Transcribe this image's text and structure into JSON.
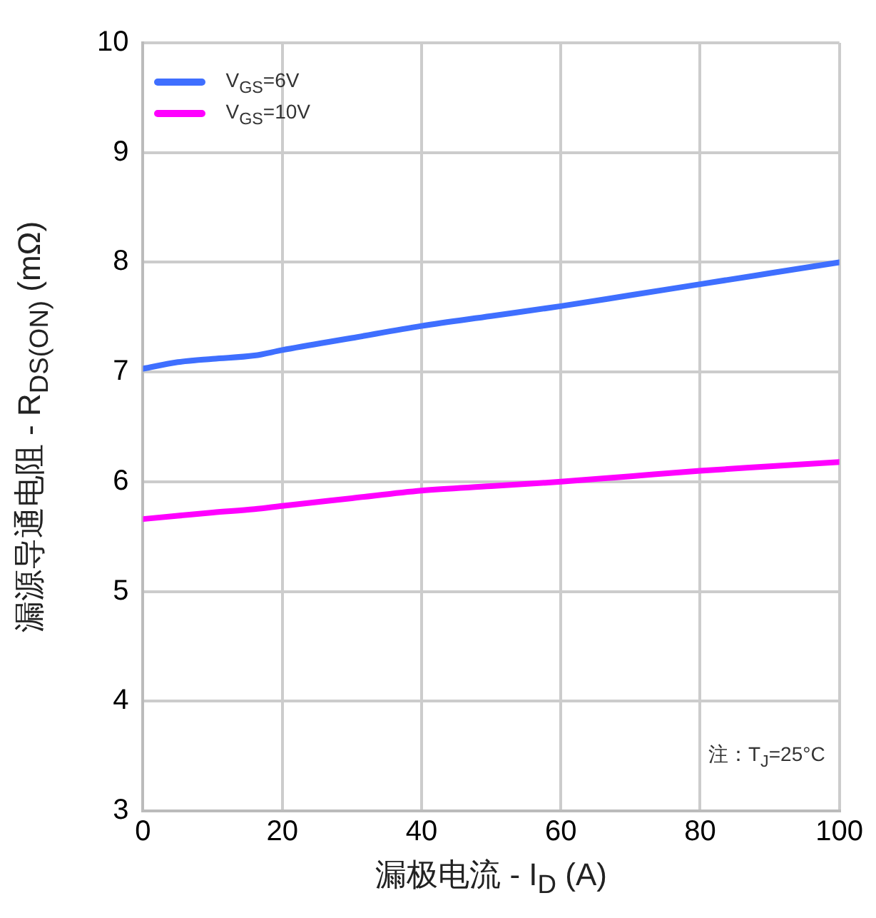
{
  "chart_data": {
    "type": "line",
    "xlabel": "漏极电流 - I$_{D}$ (A)",
    "ylabel": "漏源导通电阻 - R$_{DS(ON)}$ (mΩ)",
    "annotations": [
      "注：T$_{J}$=25°C"
    ],
    "x": [
      0,
      5,
      10,
      16,
      20,
      30,
      40,
      50,
      60,
      70,
      80,
      90,
      100
    ],
    "series": [
      {
        "name": "V$_{GS}$=6V",
        "color": "#3f6fff",
        "values": [
          7.03,
          7.09,
          7.12,
          7.15,
          7.2,
          7.31,
          7.42,
          7.51,
          7.6,
          7.7,
          7.8,
          7.9,
          8.0
        ]
      },
      {
        "name": "V$_{GS}$=10V",
        "color": "#ff00ff",
        "values": [
          5.66,
          5.69,
          5.72,
          5.75,
          5.78,
          5.85,
          5.92,
          5.96,
          6.0,
          6.05,
          6.1,
          6.14,
          6.18
        ]
      }
    ],
    "xlim": [
      0,
      100
    ],
    "xticks": [
      0,
      20,
      40,
      60,
      80,
      100
    ],
    "ylim": [
      3,
      10
    ],
    "yticks": [
      3,
      4,
      5,
      6,
      7,
      8,
      9,
      10
    ],
    "grid": true,
    "legend": "top left",
    "marker": "none",
    "line_style": "solid"
  }
}
